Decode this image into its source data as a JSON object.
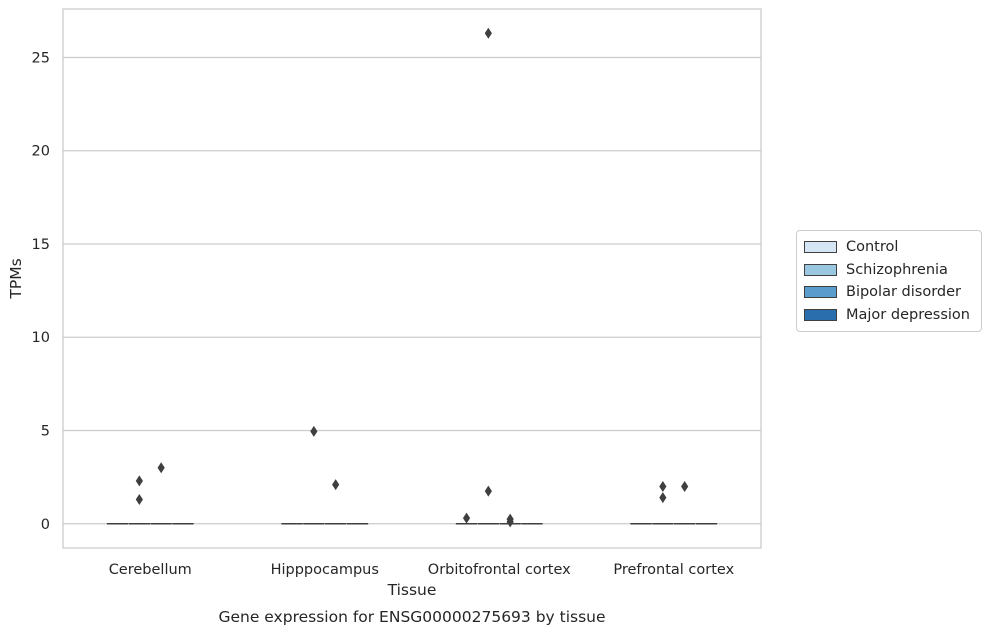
{
  "chart_data": {
    "type": "box",
    "title": "",
    "caption": "Gene expression for ENSG00000275693 by tissue",
    "xlabel": "Tissue",
    "ylabel": "TPMs",
    "ylim": [
      -1.3,
      27.6
    ],
    "yticks": [
      0,
      5,
      10,
      15,
      20,
      25
    ],
    "grid": "horizontal",
    "legend_position": "right",
    "categories": [
      "Cerebellum",
      "Hipppocampus",
      "Orbitofrontal cortex",
      "Prefrontal cortex"
    ],
    "series": [
      {
        "name": "Control",
        "color": "#d6e5f4",
        "boxes": [
          {
            "median": 0,
            "q1": 0,
            "q3": 0,
            "whisker_low": 0,
            "whisker_high": 0,
            "outliers": []
          },
          {
            "median": 0,
            "q1": 0,
            "q3": 0,
            "whisker_low": 0,
            "whisker_high": 0,
            "outliers": []
          },
          {
            "median": 0,
            "q1": 0,
            "q3": 0,
            "whisker_low": 0,
            "whisker_high": 0,
            "outliers": [
              0.3
            ]
          },
          {
            "median": 0,
            "q1": 0,
            "q3": 0,
            "whisker_low": 0,
            "whisker_high": 0,
            "outliers": []
          }
        ]
      },
      {
        "name": "Schizophrenia",
        "color": "#9ac7e0",
        "boxes": [
          {
            "median": 0,
            "q1": 0,
            "q3": 0,
            "whisker_low": 0,
            "whisker_high": 0,
            "outliers": [
              2.3,
              1.3
            ]
          },
          {
            "median": 0,
            "q1": 0,
            "q3": 0,
            "whisker_low": 0,
            "whisker_high": 0,
            "outliers": [
              4.95
            ]
          },
          {
            "median": 0,
            "q1": 0,
            "q3": 0,
            "whisker_low": 0,
            "whisker_high": 0,
            "outliers": [
              26.3,
              1.75
            ]
          },
          {
            "median": 0,
            "q1": 0,
            "q3": 0,
            "whisker_low": 0,
            "whisker_high": 0,
            "outliers": [
              2.0,
              1.4
            ]
          }
        ]
      },
      {
        "name": "Bipolar disorder",
        "color": "#5a9ccc",
        "boxes": [
          {
            "median": 0,
            "q1": 0,
            "q3": 0,
            "whisker_low": 0,
            "whisker_high": 0,
            "outliers": [
              3.0
            ]
          },
          {
            "median": 0,
            "q1": 0,
            "q3": 0,
            "whisker_low": 0,
            "whisker_high": 0,
            "outliers": [
              2.1
            ]
          },
          {
            "median": 0,
            "q1": 0,
            "q3": 0,
            "whisker_low": 0,
            "whisker_high": 0,
            "outliers": [
              0.25,
              0.1
            ]
          },
          {
            "median": 0,
            "q1": 0,
            "q3": 0,
            "whisker_low": 0,
            "whisker_high": 0,
            "outliers": [
              2.0
            ]
          }
        ]
      },
      {
        "name": "Major depression",
        "color": "#2a6ead",
        "boxes": [
          {
            "median": 0,
            "q1": 0,
            "q3": 0,
            "whisker_low": 0,
            "whisker_high": 0,
            "outliers": []
          },
          {
            "median": 0,
            "q1": 0,
            "q3": 0,
            "whisker_low": 0,
            "whisker_high": 0,
            "outliers": []
          },
          {
            "median": 0,
            "q1": 0,
            "q3": 0,
            "whisker_low": 0,
            "whisker_high": 0,
            "outliers": []
          },
          {
            "median": 0,
            "q1": 0,
            "q3": 0,
            "whisker_low": 0,
            "whisker_high": 0,
            "outliers": []
          }
        ]
      }
    ]
  }
}
